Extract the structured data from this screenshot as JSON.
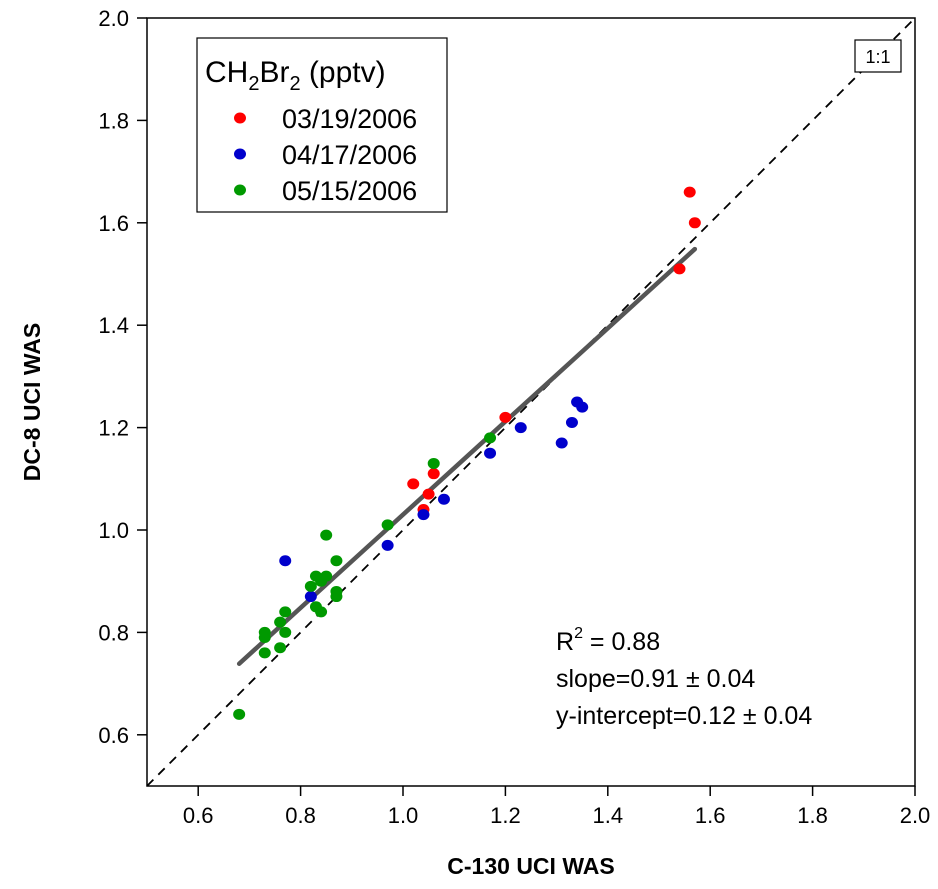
{
  "chart_data": {
    "type": "scatter",
    "title": "",
    "xlabel": "C-130 UCI WAS",
    "ylabel": "DC-8 UCI WAS",
    "xlim": [
      0.5,
      2.0
    ],
    "ylim": [
      0.5,
      2.0
    ],
    "xticks": [
      "0.6",
      "0.8",
      "1.0",
      "1.2",
      "1.4",
      "1.6",
      "1.8",
      "2.0"
    ],
    "yticks": [
      "0.6",
      "0.8",
      "1.0",
      "1.2",
      "1.4",
      "1.6",
      "1.8",
      "2.0"
    ],
    "xtick_values": [
      0.6,
      0.8,
      1.0,
      1.2,
      1.4,
      1.6,
      1.8,
      2.0
    ],
    "ytick_values": [
      0.6,
      0.8,
      1.0,
      1.2,
      1.4,
      1.6,
      1.8,
      2.0
    ],
    "grid": false,
    "legend": {
      "title_main": "CH",
      "title_sub1": "2",
      "title_mid": "Br",
      "title_sub2": "2",
      "title_tail": " (pptv)",
      "placement": "top-left"
    },
    "series": [
      {
        "name": "03/19/2006",
        "color": "#ff0000",
        "points": [
          [
            1.02,
            1.09
          ],
          [
            1.04,
            1.04
          ],
          [
            1.05,
            1.07
          ],
          [
            1.06,
            1.11
          ],
          [
            1.2,
            1.22
          ],
          [
            1.54,
            1.51
          ],
          [
            1.56,
            1.66
          ],
          [
            1.57,
            1.6
          ]
        ]
      },
      {
        "name": "04/17/2006",
        "color": "#0000cc",
        "points": [
          [
            0.77,
            0.94
          ],
          [
            0.82,
            0.87
          ],
          [
            0.97,
            0.97
          ],
          [
            1.04,
            1.03
          ],
          [
            1.08,
            1.06
          ],
          [
            1.17,
            1.15
          ],
          [
            1.23,
            1.2
          ],
          [
            1.31,
            1.17
          ],
          [
            1.33,
            1.21
          ],
          [
            1.34,
            1.25
          ],
          [
            1.35,
            1.24
          ]
        ]
      },
      {
        "name": "05/15/2006",
        "color": "#009900",
        "points": [
          [
            0.68,
            0.64
          ],
          [
            0.73,
            0.76
          ],
          [
            0.73,
            0.79
          ],
          [
            0.73,
            0.8
          ],
          [
            0.76,
            0.77
          ],
          [
            0.76,
            0.82
          ],
          [
            0.77,
            0.8
          ],
          [
            0.77,
            0.84
          ],
          [
            0.82,
            0.89
          ],
          [
            0.83,
            0.91
          ],
          [
            0.83,
            0.85
          ],
          [
            0.84,
            0.84
          ],
          [
            0.84,
            0.9
          ],
          [
            0.85,
            0.91
          ],
          [
            0.85,
            0.99
          ],
          [
            0.87,
            0.88
          ],
          [
            0.87,
            0.87
          ],
          [
            0.87,
            0.94
          ],
          [
            0.97,
            1.01
          ],
          [
            1.06,
            1.13
          ],
          [
            1.17,
            1.18
          ]
        ]
      }
    ],
    "reference_line": {
      "label": "1:1",
      "style": "dashed",
      "slope": 1,
      "intercept": 0
    },
    "fit_line": {
      "x_start": 0.68,
      "x_end": 1.57,
      "slope": 0.91,
      "intercept": 0.12,
      "color": "#555555"
    },
    "annotations": {
      "r2_prefix": "R",
      "r2_sup": "2",
      "r2_value": " = 0.88",
      "slope": "slope=0.91 ± 0.04",
      "intercept": "y-intercept=0.12 ± 0.04"
    }
  }
}
